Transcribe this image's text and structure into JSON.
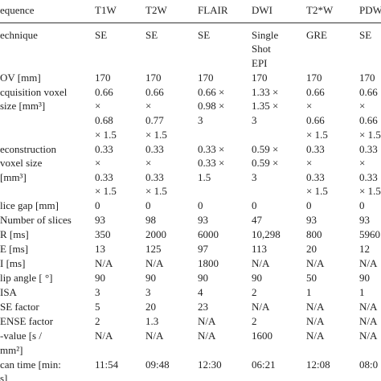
{
  "table": {
    "header": [
      "equence",
      "T1W",
      "T2W",
      "FLAIR",
      "DWI",
      "T2*W",
      "PDW"
    ],
    "rows": [
      [
        [
          "echnique"
        ],
        [
          "SE"
        ],
        [
          "SE"
        ],
        [
          "SE"
        ],
        [
          "Single",
          "Shot",
          "EPI"
        ],
        [
          "GRE"
        ],
        [
          "SE"
        ]
      ],
      [
        [
          "OV [mm]"
        ],
        [
          "170"
        ],
        [
          "170"
        ],
        [
          "170"
        ],
        [
          "170"
        ],
        [
          "170"
        ],
        [
          "170"
        ]
      ],
      [
        [
          "cquisition voxel",
          "size [mm³]"
        ],
        [
          "0.66",
          "×",
          "0.68",
          "× 1.5"
        ],
        [
          "0.66",
          "×",
          "0.77",
          "× 1.5"
        ],
        [
          "0.66 ×",
          "0.98 ×",
          "3"
        ],
        [
          "1.33 ×",
          "1.35 ×",
          "3"
        ],
        [
          "0.66",
          "×",
          "0.66",
          "× 1.5"
        ],
        [
          "0.66",
          "×",
          "0.66",
          "× 1.5"
        ]
      ],
      [
        [
          "econstruction",
          "voxel size",
          "[mm³]"
        ],
        [
          "0.33",
          "×",
          "0.33",
          "× 1.5"
        ],
        [
          "0.33",
          "×",
          "0.33",
          "× 1.5"
        ],
        [
          "0.33 ×",
          "0.33 ×",
          "1.5"
        ],
        [
          "0.59 ×",
          "0.59 ×",
          "3"
        ],
        [
          "0.33",
          "×",
          "0.33",
          "× 1.5"
        ],
        [
          "0.33",
          "×",
          "0.33",
          "× 1.5"
        ]
      ],
      [
        [
          "lice gap [mm]"
        ],
        [
          "0"
        ],
        [
          "0"
        ],
        [
          "0"
        ],
        [
          "0"
        ],
        [
          "0"
        ],
        [
          "0"
        ]
      ],
      [
        [
          "Number of slices"
        ],
        [
          "93"
        ],
        [
          "98"
        ],
        [
          "93"
        ],
        [
          "47"
        ],
        [
          "93"
        ],
        [
          "93"
        ]
      ],
      [
        [
          "R [ms]"
        ],
        [
          "350"
        ],
        [
          "2000"
        ],
        [
          "6000"
        ],
        [
          "10,298"
        ],
        [
          "800"
        ],
        [
          "5960"
        ]
      ],
      [
        [
          "E [ms]"
        ],
        [
          "13"
        ],
        [
          "125"
        ],
        [
          "97"
        ],
        [
          "113"
        ],
        [
          "20"
        ],
        [
          "12"
        ]
      ],
      [
        [
          "I [ms]"
        ],
        [
          "N/A"
        ],
        [
          "N/A"
        ],
        [
          "1800"
        ],
        [
          "N/A"
        ],
        [
          "N/A"
        ],
        [
          "N/A"
        ]
      ],
      [
        [
          "lip angle [ °]"
        ],
        [
          "90"
        ],
        [
          "90"
        ],
        [
          "90"
        ],
        [
          "90"
        ],
        [
          "50"
        ],
        [
          "90"
        ]
      ],
      [
        [
          "ISA"
        ],
        [
          "3"
        ],
        [
          "3"
        ],
        [
          "4"
        ],
        [
          "2"
        ],
        [
          "1"
        ],
        [
          "1"
        ]
      ],
      [
        [
          "SE factor"
        ],
        [
          "5"
        ],
        [
          "20"
        ],
        [
          "23"
        ],
        [
          "N/A"
        ],
        [
          "N/A"
        ],
        [
          "N/A"
        ]
      ],
      [
        [
          "ENSE factor"
        ],
        [
          "2"
        ],
        [
          "1.3"
        ],
        [
          "N/A"
        ],
        [
          "2"
        ],
        [
          "N/A"
        ],
        [
          "N/A"
        ]
      ],
      [
        [
          "-value [s /",
          "mm²]"
        ],
        [
          "N/A"
        ],
        [
          "N/A"
        ],
        [
          "N/A"
        ],
        [
          "1600"
        ],
        [
          "N/A"
        ],
        [
          "N/A"
        ]
      ],
      [
        [
          "can time [min:",
          "s]"
        ],
        [
          "11:54"
        ],
        [
          "09:48"
        ],
        [
          "12:30"
        ],
        [
          "06:21"
        ],
        [
          "12:08"
        ],
        [
          "08:0"
        ]
      ]
    ]
  }
}
